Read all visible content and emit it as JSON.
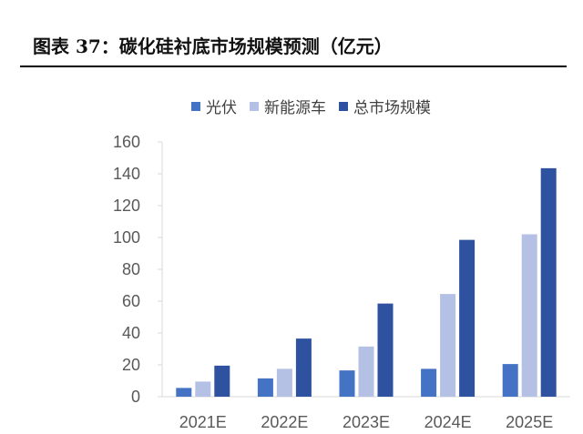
{
  "figure": {
    "title": "图表 37：碳化硅衬底市场规模预测（亿元）"
  },
  "chart_data": {
    "type": "bar",
    "categories": [
      "2021E",
      "2022E",
      "2023E",
      "2024E",
      "2025E"
    ],
    "series": [
      {
        "name": "光伏",
        "color": "#4472C4",
        "values": [
          5.5,
          11.5,
          16.5,
          17.5,
          20.5
        ]
      },
      {
        "name": "新能源车",
        "color": "#B4C0E4",
        "values": [
          9.5,
          17.5,
          31.5,
          64.5,
          102
        ]
      },
      {
        "name": "总市场规模",
        "color": "#2F52A0",
        "values": [
          19.5,
          36.5,
          58.5,
          98.5,
          143.5
        ]
      }
    ],
    "yticks": [
      "0",
      "20",
      "40",
      "60",
      "80",
      "100",
      "120",
      "140",
      "160"
    ],
    "ylim": [
      0,
      160
    ],
    "legend_position": "top",
    "grid": false
  }
}
